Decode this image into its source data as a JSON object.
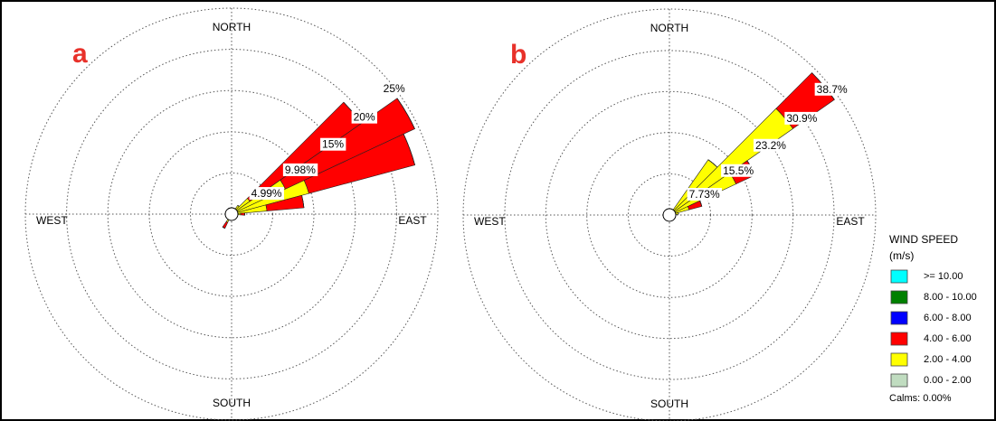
{
  "chart_data": [
    {
      "type": "windrose",
      "panel_label": "a",
      "direction_labels": [
        "NORTH",
        "EAST",
        "SOUTH",
        "WEST"
      ],
      "rlim": [
        0,
        25
      ],
      "rticks": [
        {
          "value": 4.99,
          "label": "4.99%"
        },
        {
          "value": 9.98,
          "label": "9.98%"
        },
        {
          "value": 15,
          "label": "15%"
        },
        {
          "value": 20,
          "label": "20%"
        },
        {
          "value": 25,
          "label": "25%"
        }
      ],
      "series": [
        {
          "color": "#00ffff",
          "values": [
            0,
            0,
            0,
            0,
            0,
            0,
            0,
            0,
            0,
            0,
            0,
            0,
            0,
            0,
            0,
            0,
            0,
            0,
            0,
            0,
            0,
            0,
            0,
            0,
            0,
            0,
            0,
            0,
            0,
            0,
            0,
            0,
            0,
            0,
            0,
            0
          ]
        },
        {
          "color": "#008000",
          "values": [
            0,
            0,
            0,
            0,
            0,
            0,
            0,
            0,
            0,
            0,
            0,
            0,
            0,
            0,
            0,
            0,
            0,
            0,
            0,
            0,
            0,
            0,
            0,
            0,
            0,
            0,
            0,
            0,
            0,
            0,
            0,
            0,
            0,
            0,
            0,
            0
          ]
        },
        {
          "color": "#0000ff",
          "values": [
            0,
            0,
            0,
            0,
            0,
            0,
            0,
            0,
            0,
            0,
            0,
            0,
            0,
            0,
            0,
            0,
            0,
            0,
            0,
            0,
            0,
            0,
            0,
            0,
            0,
            0,
            0,
            0,
            0,
            0,
            0,
            0,
            0,
            0,
            0,
            0
          ]
        },
        {
          "color": "#ff0000",
          "values": [
            0,
            0,
            0,
            0,
            0,
            16.5,
            17.3,
            13.3,
            4.5,
            0.5,
            0,
            0,
            0,
            0,
            0,
            0,
            0,
            0,
            0,
            0,
            0,
            0.8,
            0,
            0,
            0,
            0,
            0,
            0,
            0,
            0,
            0,
            0,
            0,
            0,
            0,
            0
          ]
        },
        {
          "color": "#ffff00",
          "values": [
            0,
            0,
            0,
            0,
            1.0,
            2.5,
            7,
            9.5,
            4,
            0.8,
            0,
            0,
            0,
            0,
            0,
            0,
            0,
            0,
            0,
            0,
            0,
            0.5,
            0,
            0,
            0,
            0,
            0,
            0,
            0,
            0,
            0,
            0,
            0,
            0,
            0,
            0
          ]
        },
        {
          "color": "#c0dcc0",
          "values": [
            0,
            0,
            0,
            0.3,
            0.3,
            0.2,
            0.2,
            0.2,
            0.3,
            0.3,
            0,
            0,
            0,
            0,
            0,
            0,
            0,
            0,
            0,
            0,
            0.5,
            0.6,
            0.4,
            0,
            0,
            0,
            0,
            0,
            0,
            0,
            0,
            0,
            0,
            0,
            0,
            0
          ]
        }
      ]
    },
    {
      "type": "windrose",
      "panel_label": "b",
      "direction_labels": [
        "NORTH",
        "EAST",
        "SOUTH",
        "WEST"
      ],
      "rlim": [
        0,
        38.7
      ],
      "rticks": [
        {
          "value": 7.73,
          "label": "7.73%"
        },
        {
          "value": 15.5,
          "label": "15.5%"
        },
        {
          "value": 23.2,
          "label": "23.2%"
        },
        {
          "value": 30.9,
          "label": "30.9%"
        },
        {
          "value": 38.7,
          "label": "38.7%"
        }
      ],
      "legend_title": "WIND SPEED",
      "legend_subtitle": "(m/s)",
      "calms_label": "Calms: 0.00%",
      "series": [
        {
          "name": ">= 10.00",
          "color": "#00ffff",
          "values": [
            0,
            0,
            0,
            0,
            0,
            0,
            0,
            0,
            0,
            0,
            0,
            0,
            0,
            0,
            0,
            0,
            0,
            0,
            0,
            0,
            0,
            0,
            0,
            0,
            0,
            0,
            0,
            0,
            0,
            0,
            0,
            0,
            0,
            0,
            0,
            0
          ]
        },
        {
          "name": "8.00 - 10.00",
          "color": "#008000",
          "values": [
            0,
            0,
            0,
            0,
            0,
            0,
            0,
            0,
            0,
            0,
            0,
            0,
            0,
            0,
            0,
            0,
            0,
            0,
            0,
            0,
            0,
            0,
            0,
            0,
            0,
            0,
            0,
            0,
            0,
            0,
            0,
            0,
            0,
            0,
            0,
            0
          ]
        },
        {
          "name": "6.00 - 8.00",
          "color": "#0000ff",
          "values": [
            0,
            0,
            0,
            0,
            0,
            0,
            0,
            0,
            0,
            0,
            0,
            0,
            0,
            0,
            0,
            0,
            0,
            0,
            0,
            0,
            0,
            0,
            0,
            0,
            0,
            0,
            0,
            0,
            0,
            0,
            0,
            0,
            0,
            0,
            0,
            0
          ]
        },
        {
          "name": "4.00 - 6.00",
          "color": "#ff0000",
          "values": [
            0,
            0,
            0,
            0,
            0,
            9.5,
            4,
            2.5,
            0,
            0,
            0,
            0,
            0,
            0,
            0,
            0,
            0,
            0,
            0,
            0,
            0,
            0,
            0,
            0,
            0,
            0,
            0,
            0,
            0,
            0,
            0,
            0,
            0,
            0,
            0,
            0
          ]
        },
        {
          "name": "2.00 - 4.00",
          "color": "#ffff00",
          "values": [
            0,
            0,
            0,
            0,
            12.4,
            28,
            13.5,
            3.5,
            1.5,
            0,
            0,
            0,
            0,
            0,
            0,
            0,
            0,
            0,
            0,
            0,
            0,
            0,
            0,
            0,
            0,
            0,
            0,
            0,
            0,
            0,
            0,
            0,
            0,
            0,
            0,
            0
          ]
        },
        {
          "name": "0.00 - 2.00",
          "color": "#c0dcc0",
          "values": [
            0,
            0,
            0,
            0.3,
            0.3,
            0.3,
            0.3,
            0.3,
            0.2,
            0,
            0,
            0,
            0,
            0,
            0,
            0,
            0,
            0,
            0,
            0,
            0.5,
            0.4,
            0,
            0,
            0,
            0,
            0,
            0,
            0,
            0,
            0,
            0,
            0,
            0,
            0,
            0
          ]
        }
      ]
    }
  ]
}
